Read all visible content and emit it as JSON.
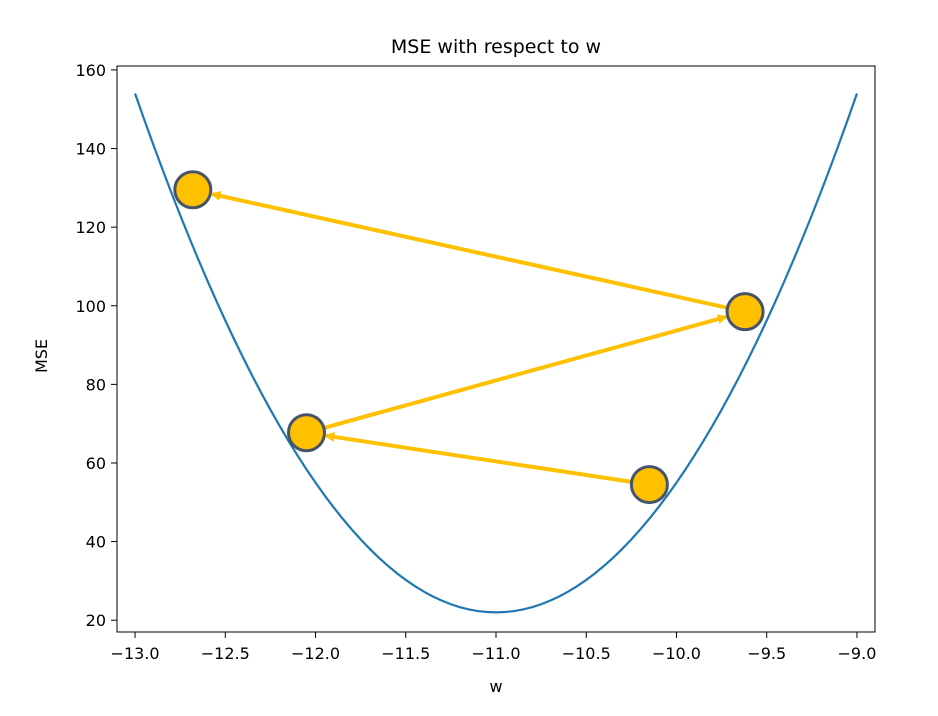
{
  "chart_data": {
    "type": "line",
    "title": "MSE with respect to w",
    "xlabel": "w",
    "ylabel": "MSE",
    "xlim": [
      -13.1,
      -8.9
    ],
    "ylim": [
      17,
      161
    ],
    "grid": false,
    "x_ticks": [
      {
        "value": -13.0,
        "label": "−13.0"
      },
      {
        "value": -12.5,
        "label": "−12.5"
      },
      {
        "value": -12.0,
        "label": "−12.0"
      },
      {
        "value": -11.5,
        "label": "−11.5"
      },
      {
        "value": -11.0,
        "label": "−11.0"
      },
      {
        "value": -10.5,
        "label": "−10.5"
      },
      {
        "value": -10.0,
        "label": "−10.0"
      },
      {
        "value": -9.5,
        "label": "−9.5"
      },
      {
        "value": -9.0,
        "label": "−9.0"
      }
    ],
    "y_ticks": [
      {
        "value": 20,
        "label": "20"
      },
      {
        "value": 40,
        "label": "40"
      },
      {
        "value": 60,
        "label": "60"
      },
      {
        "value": 80,
        "label": "80"
      },
      {
        "value": 100,
        "label": "100"
      },
      {
        "value": 120,
        "label": "120"
      },
      {
        "value": 140,
        "label": "140"
      },
      {
        "value": 160,
        "label": "160"
      }
    ],
    "curve": {
      "name": "MSE(w)",
      "function": "33 * (w + 11)^2 + 22",
      "x_range": [
        -13.0,
        -9.0
      ],
      "samples": 81,
      "color": "#1f77b4"
    },
    "gradient_descent_steps": {
      "points": [
        {
          "step": 0,
          "w": -10.15,
          "mse": 54.5
        },
        {
          "step": 1,
          "w": -12.05,
          "mse": 67.7
        },
        {
          "step": 2,
          "w": -9.62,
          "mse": 98.5
        },
        {
          "step": 3,
          "w": -12.68,
          "mse": 129.5
        }
      ],
      "point_fill": "#ffc000",
      "point_stroke": "#44546a",
      "arrow_color": "#ffc000"
    }
  }
}
